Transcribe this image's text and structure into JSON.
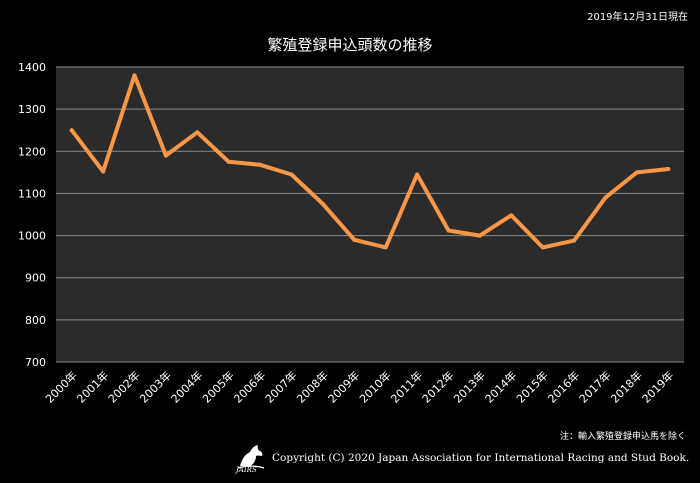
{
  "header": {
    "date": "2019年12月31日現在",
    "title": "繁殖登録申込頭数の推移"
  },
  "footer": {
    "note": "注：輸入繁殖登録申込馬を除く",
    "logo_text": "JAIRS",
    "copyright": "Copyright (C) 2020 Japan Association for International Racing and Stud Book."
  },
  "colors": {
    "line": "#F79646",
    "plot_bg": "#2b2b2b",
    "grid": "#8a8a8a",
    "background": "#000000"
  },
  "chart_data": {
    "type": "line",
    "title": "繁殖登録申込頭数の推移",
    "categories": [
      "2000年",
      "2001年",
      "2002年",
      "2003年",
      "2004年",
      "2005年",
      "2006年",
      "2007年",
      "2008年",
      "2009年",
      "2010年",
      "2011年",
      "2012年",
      "2013年",
      "2014年",
      "2015年",
      "2016年",
      "2017年",
      "2018年",
      "2019年"
    ],
    "series": [
      {
        "values": [
          1250,
          1152,
          1380,
          1190,
          1245,
          1175,
          1168,
          1145,
          1075,
          990,
          972,
          1145,
          1012,
          1000,
          1048,
          972,
          988,
          1090,
          1150,
          1158
        ]
      }
    ],
    "ylim": [
      700,
      1400
    ],
    "yticks": [
      700,
      800,
      900,
      1000,
      1100,
      1200,
      1300,
      1400
    ],
    "grid": true,
    "legend": "none"
  }
}
